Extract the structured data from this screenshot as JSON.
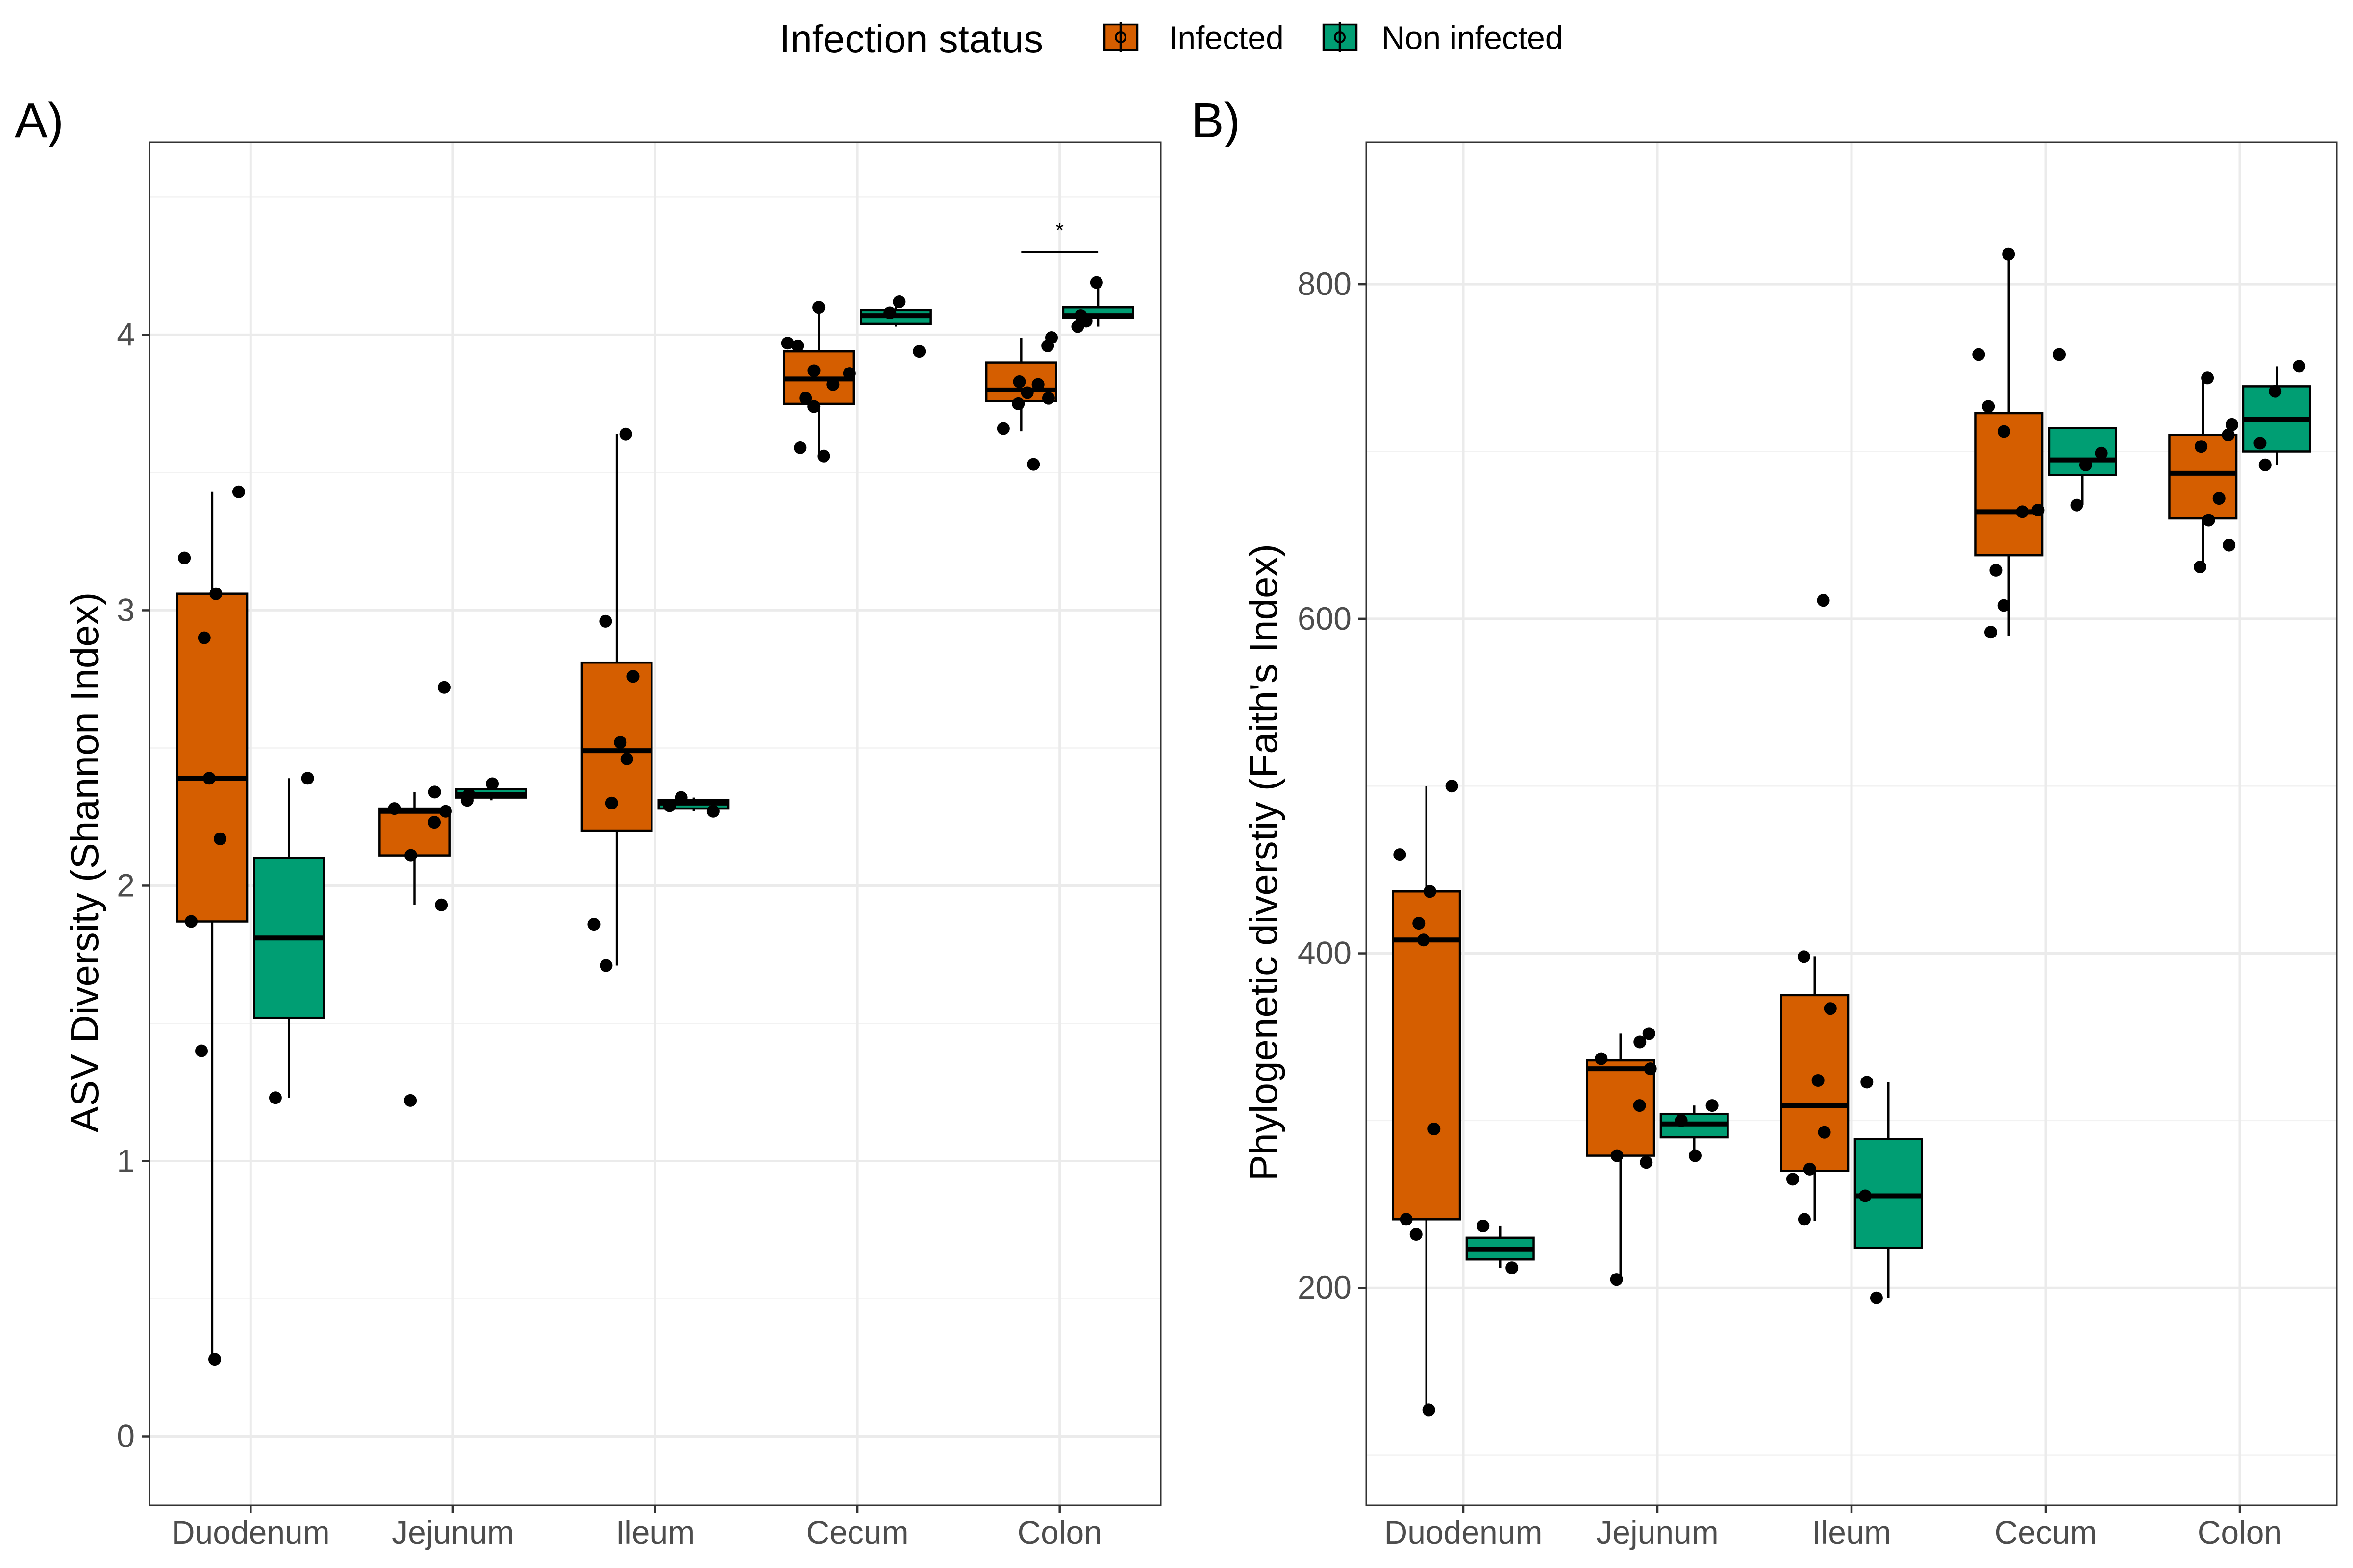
{
  "legend": {
    "title": "Infection status",
    "entries": [
      {
        "name": "Infected",
        "color": "#D55E00"
      },
      {
        "name": "Non infected",
        "color": "#009E73"
      }
    ]
  },
  "chart_data": [
    {
      "panel_label": "A)",
      "type": "box",
      "ylabel": "ASV Diversity (Shannon Index)",
      "xlabel": "",
      "categories": [
        "Duodenum",
        "Jejunum",
        "Ileum",
        "Cecum",
        "Colon"
      ],
      "ylim": [
        -0.25,
        4.7
      ],
      "yticks": [
        0,
        1,
        2,
        3,
        4
      ],
      "grid": true,
      "legend_position": "top",
      "series": [
        {
          "name": "Infected",
          "boxes": [
            {
              "category": "Duodenum",
              "whisker_low": 0.28,
              "q1": 1.87,
              "median": 2.39,
              "q3": 3.06,
              "whisker_high": 3.43,
              "points": [
                3.43,
                3.19,
                3.06,
                2.9,
                2.39,
                2.17,
                1.87,
                1.4,
                0.28
              ]
            },
            {
              "category": "Jejunum",
              "whisker_low": 1.93,
              "q1": 2.11,
              "median": 2.27,
              "q3": 2.28,
              "whisker_high": 2.34,
              "points": [
                2.72,
                2.34,
                2.28,
                2.27,
                2.23,
                2.11,
                1.93,
                1.22
              ]
            },
            {
              "category": "Ileum",
              "whisker_low": 1.71,
              "q1": 2.2,
              "median": 2.49,
              "q3": 2.81,
              "whisker_high": 3.64,
              "points": [
                3.64,
                2.96,
                2.76,
                2.52,
                2.46,
                2.3,
                1.86,
                1.71
              ]
            },
            {
              "category": "Cecum",
              "whisker_low": 3.55,
              "q1": 3.75,
              "median": 3.84,
              "q3": 3.94,
              "whisker_high": 4.1,
              "points": [
                4.1,
                3.97,
                3.96,
                3.87,
                3.86,
                3.82,
                3.77,
                3.74,
                3.59,
                3.56
              ]
            },
            {
              "category": "Colon",
              "whisker_low": 3.65,
              "q1": 3.76,
              "median": 3.8,
              "q3": 3.9,
              "whisker_high": 3.99,
              "points": [
                3.99,
                3.96,
                3.83,
                3.82,
                3.79,
                3.77,
                3.75,
                3.66,
                3.53
              ]
            }
          ]
        },
        {
          "name": "Non infected",
          "boxes": [
            {
              "category": "Duodenum",
              "whisker_low": 1.23,
              "q1": 1.52,
              "median": 1.81,
              "q3": 2.1,
              "whisker_high": 2.39,
              "points": [
                2.39,
                1.23
              ]
            },
            {
              "category": "Jejunum",
              "whisker_low": 2.31,
              "q1": 2.32,
              "median": 2.33,
              "q3": 2.35,
              "whisker_high": 2.37,
              "points": [
                2.37,
                2.33,
                2.31
              ]
            },
            {
              "category": "Ileum",
              "whisker_low": 2.27,
              "q1": 2.28,
              "median": 2.3,
              "q3": 2.31,
              "whisker_high": 2.32,
              "points": [
                2.32,
                2.29,
                2.27
              ]
            },
            {
              "category": "Cecum",
              "whisker_low": 4.03,
              "q1": 4.04,
              "median": 4.07,
              "q3": 4.09,
              "whisker_high": 4.12,
              "points": [
                4.12,
                4.08,
                3.94
              ]
            },
            {
              "category": "Colon",
              "whisker_low": 4.03,
              "q1": 4.06,
              "median": 4.07,
              "q3": 4.1,
              "whisker_high": 4.19,
              "points": [
                4.19,
                4.07,
                4.05,
                4.03
              ]
            }
          ]
        }
      ],
      "annotations": [
        {
          "text": "*",
          "category": "Colon",
          "y": 4.3
        }
      ]
    },
    {
      "panel_label": "B)",
      "type": "box",
      "ylabel": "Phylogenetic diverstiy (Faith's Index)",
      "xlabel": "",
      "categories": [
        "Duodenum",
        "Jejunum",
        "Ileum",
        "Cecum",
        "Colon"
      ],
      "ylim": [
        70,
        885
      ],
      "yticks": [
        200,
        400,
        600,
        800
      ],
      "grid": true,
      "legend_position": "top",
      "series": [
        {
          "name": "Infected",
          "boxes": [
            {
              "category": "Duodenum",
              "whisker_low": 126,
              "q1": 241,
              "median": 408,
              "q3": 437,
              "whisker_high": 500,
              "points": [
                500,
                459,
                437,
                418,
                408,
                295,
                241,
                232,
                127
              ]
            },
            {
              "category": "Jejunum",
              "whisker_low": 205,
              "q1": 279,
              "median": 331,
              "q3": 336,
              "whisker_high": 352,
              "points": [
                352,
                347,
                337,
                331,
                309,
                279,
                275,
                205
              ]
            },
            {
              "category": "Ileum",
              "whisker_low": 240,
              "q1": 270,
              "median": 309,
              "q3": 375,
              "whisker_high": 398,
              "points": [
                611,
                398,
                367,
                324,
                293,
                271,
                265,
                241
              ]
            },
            {
              "category": "Cecum",
              "whisker_low": 590,
              "q1": 638,
              "median": 664,
              "q3": 723,
              "whisker_high": 818,
              "points": [
                818,
                758,
                727,
                712,
                665,
                664,
                629,
                608,
                592
              ]
            },
            {
              "category": "Colon",
              "whisker_low": 630,
              "q1": 660,
              "median": 687,
              "q3": 710,
              "whisker_high": 744,
              "points": [
                744,
                716,
                710,
                703,
                672,
                659,
                644,
                631
              ]
            }
          ]
        },
        {
          "name": "Non infected",
          "boxes": [
            {
              "category": "Duodenum",
              "whisker_low": 212,
              "q1": 217,
              "median": 223,
              "q3": 230,
              "whisker_high": 237,
              "points": [
                237,
                212
              ]
            },
            {
              "category": "Jejunum",
              "whisker_low": 278,
              "q1": 290,
              "median": 298,
              "q3": 304,
              "whisker_high": 309,
              "points": [
                309,
                300,
                279
              ]
            },
            {
              "category": "Ileum",
              "whisker_low": 194,
              "q1": 224,
              "median": 255,
              "q3": 289,
              "whisker_high": 323,
              "points": [
                323,
                255,
                194
              ]
            },
            {
              "category": "Cecum",
              "whisker_low": 668,
              "q1": 686,
              "median": 695,
              "q3": 714,
              "whisker_high": 714,
              "points": [
                758,
                699,
                692,
                668
              ]
            },
            {
              "category": "Colon",
              "whisker_low": 692,
              "q1": 700,
              "median": 719,
              "q3": 739,
              "whisker_high": 751,
              "points": [
                751,
                736,
                705,
                692
              ]
            }
          ]
        }
      ],
      "annotations": []
    }
  ]
}
